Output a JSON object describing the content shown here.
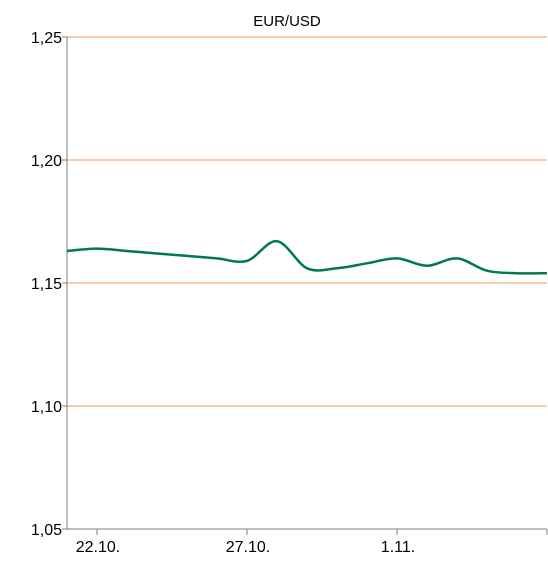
{
  "chart_data": {
    "type": "line",
    "title": "EUR/USD",
    "xlabel": "",
    "ylabel": "",
    "ylim": [
      1.05,
      1.25
    ],
    "y_ticks": [
      "1,05",
      "1,10",
      "1,15",
      "1,20",
      "1,25"
    ],
    "y_tick_values": [
      1.05,
      1.1,
      1.15,
      1.2,
      1.25
    ],
    "x_ticks": [
      {
        "label": "22.10.",
        "day": 22
      },
      {
        "label": "27.10.",
        "day": 27
      },
      {
        "label": "1.11.",
        "day": 32
      }
    ],
    "grid": "horizontal",
    "colors": {
      "grid": "#f4b183",
      "line": "#007a4d",
      "axis": "#7f7f7f"
    },
    "series": [
      {
        "x": [
          "21.10.",
          "22.10.",
          "23.10.",
          "24.10.",
          "25.10.",
          "26.10.",
          "27.10.",
          "28.10.",
          "29.10.",
          "30.10.",
          "31.10.",
          "1.11.",
          "2.11.",
          "3.11.",
          "4.11.",
          "5.11.",
          "6.11."
        ],
        "values": [
          1.163,
          1.164,
          1.163,
          1.162,
          1.161,
          1.16,
          1.159,
          1.167,
          1.156,
          1.156,
          1.158,
          1.16,
          1.157,
          1.16,
          1.155,
          1.154,
          1.154
        ]
      }
    ]
  }
}
